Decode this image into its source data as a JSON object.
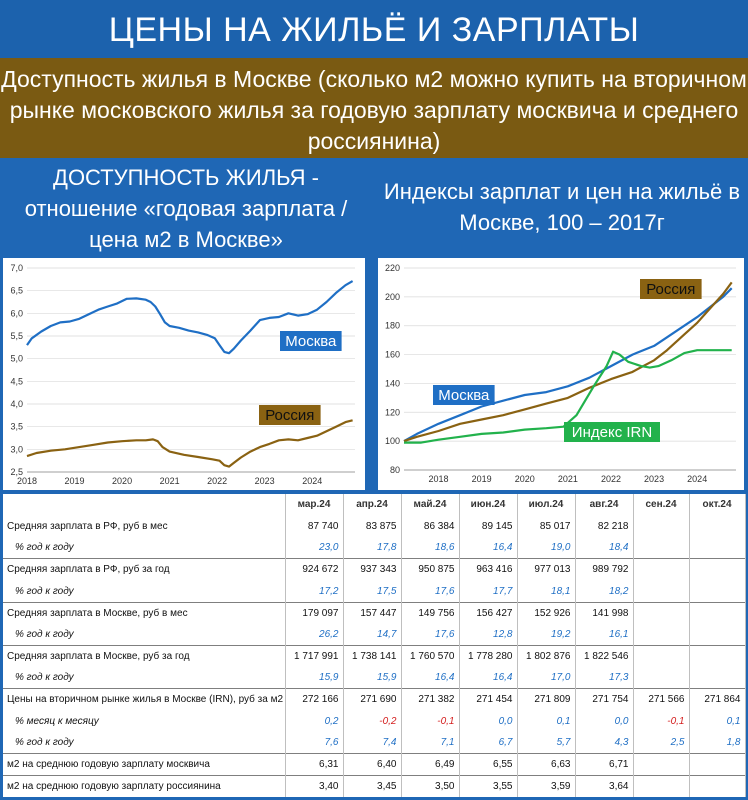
{
  "title": "ЦЕНЫ НА ЖИЛЬЁ И ЗАРПЛАТЫ",
  "subtitle": "Доступность жилья в Москве (сколько м2 можно купить на вторичном рынке московского жилья за годовую зарплату москвича и среднего россиянина)",
  "left_heading": "ДОСТУПНОСТЬ ЖИЛЬЯ - отношение «годовая зарплата / цена м2 в Москве»",
  "right_heading": "Индексы зарплат и цен на жильё в Москве, 100 – 2017г",
  "chart_data": [
    {
      "type": "line",
      "x_ticks": [
        "2018",
        "2019",
        "2020",
        "2021",
        "2022",
        "2023",
        "2024"
      ],
      "y_ticks": [
        "2,5",
        "3,0",
        "3,5",
        "4,0",
        "4,5",
        "5,0",
        "5,5",
        "6,0",
        "6,5",
        "7,0"
      ],
      "ylim": [
        2.5,
        7.0
      ],
      "xlim": [
        2018.0,
        2024.9
      ],
      "grid": true,
      "series": [
        {
          "name": "Москва",
          "color": "#1f6fc5",
          "x": [
            2018.0,
            2018.1,
            2018.3,
            2018.5,
            2018.7,
            2018.9,
            2019.1,
            2019.3,
            2019.5,
            2019.7,
            2019.9,
            2020.1,
            2020.3,
            2020.5,
            2020.6,
            2020.7,
            2020.8,
            2020.9,
            2021.0,
            2021.2,
            2021.4,
            2021.6,
            2021.8,
            2021.95,
            2022.05,
            2022.15,
            2022.25,
            2022.35,
            2022.5,
            2022.7,
            2022.9,
            2023.1,
            2023.3,
            2023.5,
            2023.7,
            2023.9,
            2024.1,
            2024.3,
            2024.5,
            2024.7,
            2024.85
          ],
          "y": [
            5.3,
            5.45,
            5.6,
            5.72,
            5.8,
            5.82,
            5.88,
            5.98,
            6.08,
            6.15,
            6.22,
            6.32,
            6.33,
            6.3,
            6.25,
            6.15,
            5.98,
            5.8,
            5.72,
            5.68,
            5.62,
            5.58,
            5.52,
            5.45,
            5.3,
            5.15,
            5.12,
            5.22,
            5.4,
            5.62,
            5.85,
            5.9,
            5.92,
            6.0,
            5.95,
            5.98,
            6.08,
            6.25,
            6.45,
            6.62,
            6.71
          ]
        },
        {
          "name": "Россия",
          "color": "#8a6212",
          "x": [
            2018.0,
            2018.2,
            2018.5,
            2018.8,
            2019.1,
            2019.4,
            2019.7,
            2020.0,
            2020.3,
            2020.5,
            2020.65,
            2020.75,
            2020.85,
            2021.0,
            2021.3,
            2021.6,
            2021.9,
            2022.05,
            2022.15,
            2022.25,
            2022.35,
            2022.5,
            2022.7,
            2022.9,
            2023.1,
            2023.3,
            2023.5,
            2023.7,
            2023.9,
            2024.1,
            2024.3,
            2024.5,
            2024.7,
            2024.85
          ],
          "y": [
            2.85,
            2.92,
            2.97,
            3.0,
            3.05,
            3.1,
            3.15,
            3.18,
            3.2,
            3.2,
            3.22,
            3.18,
            3.05,
            2.95,
            2.88,
            2.83,
            2.78,
            2.75,
            2.65,
            2.62,
            2.7,
            2.82,
            2.95,
            3.05,
            3.12,
            3.2,
            3.22,
            3.2,
            3.25,
            3.3,
            3.4,
            3.5,
            3.6,
            3.64
          ]
        }
      ]
    },
    {
      "type": "line",
      "x_ticks": [
        "2018",
        "2019",
        "2020",
        "2021",
        "2022",
        "2023",
        "2024"
      ],
      "y_ticks": [
        "80",
        "100",
        "120",
        "140",
        "160",
        "180",
        "200",
        "220"
      ],
      "ylim": [
        80,
        220
      ],
      "xlim": [
        2017.2,
        2024.9
      ],
      "grid": true,
      "series": [
        {
          "name": "Москва",
          "color": "#1f6fc5",
          "x": [
            2017.2,
            2017.5,
            2018.0,
            2018.5,
            2019.0,
            2019.5,
            2020.0,
            2020.5,
            2021.0,
            2021.5,
            2022.0,
            2022.5,
            2023.0,
            2023.3,
            2023.7,
            2024.0,
            2024.3,
            2024.6,
            2024.8
          ],
          "y": [
            100,
            105,
            112,
            118,
            124,
            128,
            132,
            134,
            138,
            144,
            152,
            160,
            166,
            172,
            180,
            186,
            193,
            200,
            206
          ]
        },
        {
          "name": "Россия",
          "color": "#8a6212",
          "x": [
            2017.2,
            2017.5,
            2018.0,
            2018.5,
            2019.0,
            2019.5,
            2020.0,
            2020.5,
            2021.0,
            2021.5,
            2022.0,
            2022.5,
            2023.0,
            2023.3,
            2023.7,
            2024.0,
            2024.3,
            2024.6,
            2024.8
          ],
          "y": [
            100,
            103,
            107,
            112,
            115,
            118,
            122,
            126,
            130,
            137,
            143,
            148,
            156,
            163,
            174,
            182,
            192,
            202,
            210
          ]
        },
        {
          "name": "Индекс IRN",
          "color": "#22b24c",
          "x": [
            2017.2,
            2017.6,
            2018.0,
            2018.5,
            2019.0,
            2019.5,
            2020.0,
            2020.5,
            2020.9,
            2021.2,
            2021.6,
            2021.9,
            2022.05,
            2022.2,
            2022.4,
            2022.7,
            2022.9,
            2023.1,
            2023.4,
            2023.7,
            2024.0,
            2024.3,
            2024.6,
            2024.8
          ],
          "y": [
            99,
            99,
            101,
            103,
            105,
            106,
            108,
            109,
            110,
            118,
            138,
            152,
            162,
            160,
            155,
            152,
            151,
            152,
            156,
            161,
            163,
            163,
            163,
            163
          ]
        }
      ]
    },
    {
      "type": "table",
      "columns": [
        "",
        "мар.24",
        "апр.24",
        "май.24",
        "июн.24",
        "июл.24",
        "авг.24",
        "сен.24",
        "окт.24"
      ],
      "rows": [
        {
          "label": "Средняя зарплата в РФ, руб в мес",
          "style": "main",
          "values": [
            "87 740",
            "83 875",
            "86 384",
            "89 145",
            "85 017",
            "82 218",
            "",
            ""
          ]
        },
        {
          "label": "% год к году",
          "style": "sub",
          "values": [
            "23,0",
            "17,8",
            "18,6",
            "16,4",
            "19,0",
            "18,4",
            "",
            ""
          ]
        },
        {
          "label": "Средняя зарплата в РФ, руб за год",
          "style": "main",
          "values": [
            "924 672",
            "937 343",
            "950 875",
            "963 416",
            "977 013",
            "989 792",
            "",
            ""
          ]
        },
        {
          "label": "% год к году",
          "style": "sub",
          "values": [
            "17,2",
            "17,5",
            "17,6",
            "17,7",
            "18,1",
            "18,2",
            "",
            ""
          ]
        },
        {
          "label": "Средняя зарплата в Москве, руб в мес",
          "style": "main",
          "values": [
            "179 097",
            "157 447",
            "149 756",
            "156 427",
            "152 926",
            "141 998",
            "",
            ""
          ]
        },
        {
          "label": "% год к году",
          "style": "sub",
          "values": [
            "26,2",
            "14,7",
            "17,6",
            "12,8",
            "19,2",
            "16,1",
            "",
            ""
          ]
        },
        {
          "label": "Средняя зарплата в Москве, руб за год",
          "style": "main",
          "values": [
            "1 717 991",
            "1 738 141",
            "1 760 570",
            "1 778 280",
            "1 802 876",
            "1 822 546",
            "",
            ""
          ]
        },
        {
          "label": "% год к году",
          "style": "sub",
          "values": [
            "15,9",
            "15,9",
            "16,4",
            "16,4",
            "17,0",
            "17,3",
            "",
            ""
          ]
        },
        {
          "label": "Цены на вторичном рынке жилья в Москве (IRN), руб за м2",
          "style": "main",
          "values": [
            "272 166",
            "271 690",
            "271 382",
            "271 454",
            "271 809",
            "271 754",
            "271 566",
            "271 864"
          ]
        },
        {
          "label": "% месяц к месяцу",
          "style": "sub",
          "values": [
            "0,2",
            "-0,2",
            "-0,1",
            "0,0",
            "0,1",
            "0,0",
            "-0,1",
            "0,1"
          ]
        },
        {
          "label": "% год к году",
          "style": "sub",
          "values": [
            "7,6",
            "7,4",
            "7,1",
            "6,7",
            "5,7",
            "4,3",
            "2,5",
            "1,8"
          ]
        },
        {
          "label": "м2 на среднюю годовую зарплату москвича",
          "style": "main",
          "values": [
            "6,31",
            "6,40",
            "6,49",
            "6,55",
            "6,63",
            "6,71",
            "",
            ""
          ]
        },
        {
          "label": "м2 на среднюю годовую зарплату россиянина",
          "style": "main",
          "values": [
            "3,40",
            "3,45",
            "3,50",
            "3,55",
            "3,59",
            "3,64",
            "",
            ""
          ]
        }
      ]
    }
  ],
  "colors": {
    "title_bg": "#1c62ad",
    "subtitle_bg": "#7a5a12",
    "moscow": "#1f6fc5",
    "russia": "#8a6212",
    "irn": "#22b24c",
    "negative": "#d42020"
  }
}
